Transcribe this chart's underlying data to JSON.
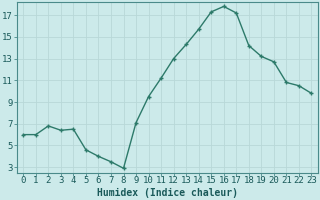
{
  "x": [
    0,
    1,
    2,
    3,
    4,
    5,
    6,
    7,
    8,
    9,
    10,
    11,
    12,
    13,
    14,
    15,
    16,
    17,
    18,
    19,
    20,
    21,
    22,
    23
  ],
  "y": [
    6.0,
    6.0,
    6.8,
    6.4,
    6.5,
    4.6,
    4.0,
    3.5,
    2.9,
    7.1,
    9.5,
    11.2,
    13.0,
    14.3,
    15.7,
    17.3,
    17.8,
    17.2,
    14.2,
    13.2,
    12.7,
    10.8,
    10.5,
    9.8
  ],
  "line_color": "#2d7a6a",
  "marker": "+",
  "marker_size": 3.5,
  "background_color": "#cceaea",
  "grid_color": "#b8d8d8",
  "xlabel": "Humidex (Indice chaleur)",
  "xlim": [
    -0.5,
    23.5
  ],
  "ylim": [
    2.5,
    18.2
  ],
  "yticks": [
    3,
    5,
    7,
    9,
    11,
    13,
    15,
    17
  ],
  "xtick_labels": [
    "0",
    "1",
    "2",
    "3",
    "4",
    "5",
    "6",
    "7",
    "8",
    "9",
    "10",
    "11",
    "12",
    "13",
    "14",
    "15",
    "16",
    "17",
    "18",
    "19",
    "20",
    "21",
    "22",
    "23"
  ],
  "xlabel_fontsize": 7,
  "tick_fontsize": 6.5,
  "linewidth": 1.0
}
